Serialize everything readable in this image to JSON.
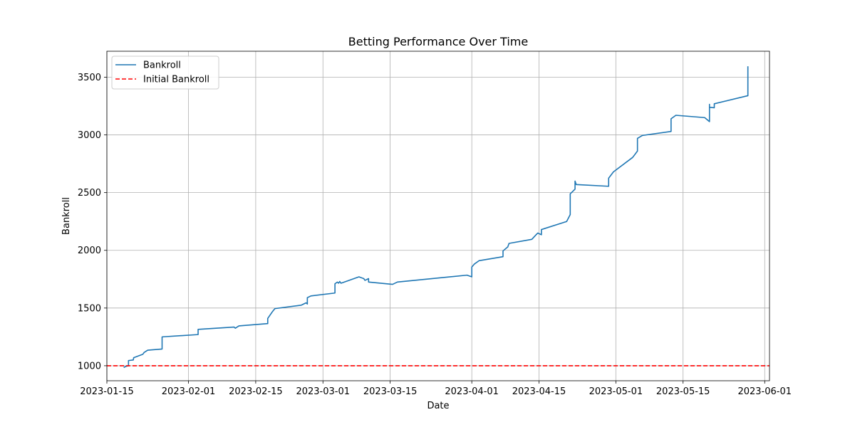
{
  "chart_data": {
    "type": "line",
    "title": "Betting Performance Over Time",
    "xlabel": "Date",
    "ylabel": "Bankroll",
    "xlim": [
      "2023-01-15",
      "2023-06-02"
    ],
    "ylim": [
      870,
      3725
    ],
    "grid": true,
    "legend_position": "top-left",
    "x_ticks": [
      "2023-01-15",
      "2023-02-01",
      "2023-02-15",
      "2023-03-01",
      "2023-03-15",
      "2023-04-01",
      "2023-04-15",
      "2023-05-01",
      "2023-05-15",
      "2023-06-01"
    ],
    "y_ticks": [
      1000,
      1500,
      2000,
      2500,
      3000,
      3500
    ],
    "colors": {
      "bankroll": "#1f77b4",
      "initial": "#ff0000"
    },
    "series": [
      {
        "name": "Bankroll",
        "style": "solid",
        "points": [
          [
            "2023-01-18T12:00",
            985
          ],
          [
            "2023-01-19T00:00",
            995
          ],
          [
            "2023-01-19T12:00",
            1000
          ],
          [
            "2023-01-19T12:00",
            1045
          ],
          [
            "2023-01-20T12:00",
            1050
          ],
          [
            "2023-01-20T14:00",
            1070
          ],
          [
            "2023-01-22T12:00",
            1100
          ],
          [
            "2023-01-22T18:00",
            1115
          ],
          [
            "2023-01-23T12:00",
            1135
          ],
          [
            "2023-01-26T12:00",
            1145
          ],
          [
            "2023-01-26T12:00",
            1250
          ],
          [
            "2023-02-03T00:00",
            1270
          ],
          [
            "2023-02-03T00:00",
            1315
          ],
          [
            "2023-02-10T12:00",
            1335
          ],
          [
            "2023-02-10T18:00",
            1325
          ],
          [
            "2023-02-11T12:00",
            1345
          ],
          [
            "2023-02-17T12:00",
            1365
          ],
          [
            "2023-02-17T12:00",
            1410
          ],
          [
            "2023-02-18T12:00",
            1470
          ],
          [
            "2023-02-19T00:00",
            1495
          ],
          [
            "2023-02-24T12:00",
            1525
          ],
          [
            "2023-02-25T12:00",
            1545
          ],
          [
            "2023-02-25T18:00",
            1535
          ],
          [
            "2023-02-25T18:00",
            1590
          ],
          [
            "2023-02-26T12:00",
            1605
          ],
          [
            "2023-03-03T12:00",
            1630
          ],
          [
            "2023-03-03T12:00",
            1710
          ],
          [
            "2023-03-04T00:00",
            1725
          ],
          [
            "2023-03-04T06:00",
            1715
          ],
          [
            "2023-03-04T12:00",
            1730
          ],
          [
            "2023-03-04T18:00",
            1715
          ],
          [
            "2023-03-08T12:00",
            1770
          ],
          [
            "2023-03-09T12:00",
            1755
          ],
          [
            "2023-03-09T18:00",
            1740
          ],
          [
            "2023-03-10T12:00",
            1755
          ],
          [
            "2023-03-10T12:00",
            1725
          ],
          [
            "2023-03-15T12:00",
            1705
          ],
          [
            "2023-03-16T12:00",
            1725
          ],
          [
            "2023-03-31T00:00",
            1785
          ],
          [
            "2023-04-01T00:00",
            1770
          ],
          [
            "2023-04-01T00:00",
            1855
          ],
          [
            "2023-04-01T12:00",
            1880
          ],
          [
            "2023-04-02T12:00",
            1910
          ],
          [
            "2023-04-07T12:00",
            1945
          ],
          [
            "2023-04-07T12:00",
            1995
          ],
          [
            "2023-04-08T12:00",
            2030
          ],
          [
            "2023-04-08T18:00",
            2060
          ],
          [
            "2023-04-13T12:00",
            2095
          ],
          [
            "2023-04-14T12:00",
            2140
          ],
          [
            "2023-04-14T18:00",
            2150
          ],
          [
            "2023-04-15T12:00",
            2135
          ],
          [
            "2023-04-15T12:00",
            2180
          ],
          [
            "2023-04-20T18:00",
            2250
          ],
          [
            "2023-04-21T12:00",
            2310
          ],
          [
            "2023-04-21T12:00",
            2490
          ],
          [
            "2023-04-22T12:00",
            2530
          ],
          [
            "2023-04-22T12:00",
            2600
          ],
          [
            "2023-04-22T18:00",
            2570
          ],
          [
            "2023-04-29T12:00",
            2555
          ],
          [
            "2023-04-29T12:00",
            2625
          ],
          [
            "2023-04-30T12:00",
            2680
          ],
          [
            "2023-05-04T12:00",
            2805
          ],
          [
            "2023-05-05T12:00",
            2860
          ],
          [
            "2023-05-05T12:00",
            2970
          ],
          [
            "2023-05-06T12:00",
            2995
          ],
          [
            "2023-05-12T12:00",
            3030
          ],
          [
            "2023-05-12T12:00",
            3095
          ],
          [
            "2023-05-12T12:00",
            3140
          ],
          [
            "2023-05-13T12:00",
            3170
          ],
          [
            "2023-05-19T12:00",
            3150
          ],
          [
            "2023-05-20T12:00",
            3115
          ],
          [
            "2023-05-20T12:00",
            3265
          ],
          [
            "2023-05-20T12:00",
            3240
          ],
          [
            "2023-05-21T12:00",
            3235
          ],
          [
            "2023-05-21T12:00",
            3270
          ],
          [
            "2023-05-28T12:00",
            3340
          ],
          [
            "2023-05-28T12:00",
            3595
          ]
        ]
      },
      {
        "name": "Initial Bankroll",
        "style": "dashed",
        "y": 1000
      }
    ]
  }
}
